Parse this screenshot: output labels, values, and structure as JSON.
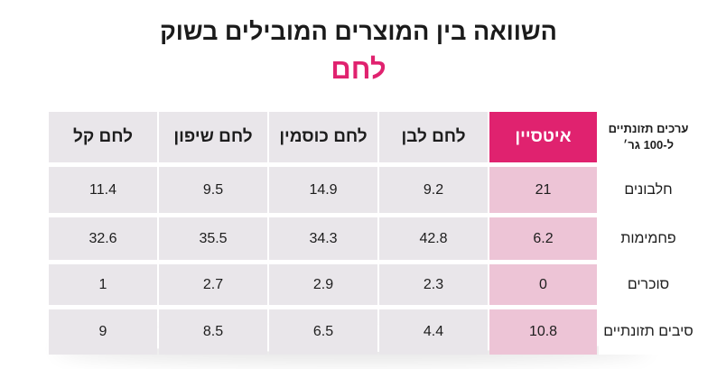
{
  "title": "השוואה בין המוצרים המובילים בשוק",
  "subtitle": "לחם",
  "table": {
    "corner_line1": "ערכים תזונתיים",
    "corner_line2": "ל-100 גר׳",
    "columns": [
      "איטסיין",
      "לחם לבן",
      "לחם כוסמין",
      "לחם שיפון",
      "לחם קל"
    ],
    "rows": [
      {
        "label": "חלבונים",
        "values": [
          "21",
          "9.2",
          "14.9",
          "9.5",
          "11.4"
        ]
      },
      {
        "label": "פחמימות",
        "values": [
          "6.2",
          "42.8",
          "34.3",
          "35.5",
          "32.6"
        ]
      },
      {
        "label": "סוכרים",
        "values": [
          "0",
          "2.3",
          "2.9",
          "2.7",
          "1"
        ]
      },
      {
        "label": "סיבים תזונתיים",
        "values": [
          "10.8",
          "4.4",
          "6.5",
          "8.5",
          "9"
        ]
      }
    ]
  },
  "colors": {
    "accent": "#e0226f",
    "highlight_cell": "#edc4d6",
    "cell": "#e9e6ea"
  }
}
